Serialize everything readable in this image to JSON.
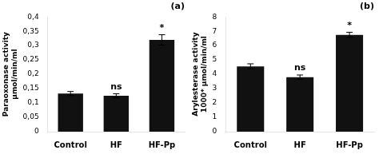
{
  "chart_data": [
    {
      "type": "bar",
      "title": "(a)",
      "categories": [
        "Control",
        "HF",
        "HF-Pp"
      ],
      "values": [
        0.133,
        0.125,
        0.32
      ],
      "errors": [
        0.007,
        0.007,
        0.018
      ],
      "ylabel": "Paraoxonase activity\nμmol/min/ml",
      "ylim": [
        0,
        0.4
      ],
      "yticks": [
        0,
        {
          "value": 0.05,
          "label": "0,05"
        },
        {
          "value": 0.1,
          "label": "0,1"
        },
        {
          "value": 0.15,
          "label": "0,15"
        },
        {
          "value": 0.2,
          "label": "0,2"
        },
        {
          "value": 0.25,
          "label": "0,25"
        },
        {
          "value": 0.3,
          "label": "0,3"
        },
        {
          "value": 0.35,
          "label": "0,35"
        },
        {
          "value": 0.4,
          "label": "0,4"
        }
      ],
      "annotations": [
        null,
        "ns",
        "*"
      ],
      "color": "#111111",
      "grid": false
    },
    {
      "type": "bar",
      "title": "(b)",
      "categories": [
        "Control",
        "HF",
        "HF-Pp"
      ],
      "values": [
        4.55,
        3.8,
        6.75
      ],
      "errors": [
        0.18,
        0.15,
        0.18
      ],
      "ylabel": "Arylesterase activity\n1000* μmol/min/ml",
      "ylim": [
        0,
        8
      ],
      "yticks": [
        0,
        1,
        2,
        3,
        4,
        5,
        6,
        7,
        8
      ],
      "annotations": [
        null,
        "ns",
        "*"
      ],
      "color": "#111111",
      "grid": false
    }
  ]
}
